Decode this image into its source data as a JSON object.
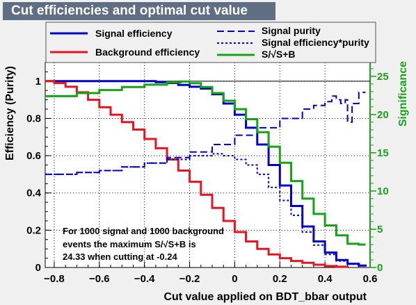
{
  "title": "Cut efficiencies and optimal cut value",
  "chart_data": {
    "type": "line",
    "xlabel": "Cut value applied on BDT_bbar output",
    "ylabel": "Efficiency (Purity)",
    "y2label": "Significance",
    "xlim": [
      -0.84,
      0.6
    ],
    "ylim": [
      0,
      1.1
    ],
    "y2lim": [
      0,
      26.8
    ],
    "xticks": [
      -0.8,
      -0.6,
      -0.4,
      -0.2,
      0,
      0.2,
      0.4,
      0.6
    ],
    "xtick_labels": [
      "−0.8",
      "−0.6",
      "−0.4",
      "−0.2",
      "0",
      "0.2",
      "0.4",
      "0.6"
    ],
    "yticks": [
      0,
      0.2,
      0.4,
      0.6,
      0.8,
      1
    ],
    "ytick_labels": [
      "0",
      "0.2",
      "0.4",
      "0.6",
      "0.8",
      "1"
    ],
    "y2ticks": [
      0,
      5,
      10,
      15,
      20,
      25
    ],
    "y2tick_labels": [
      "0",
      "5",
      "10",
      "15",
      "20",
      "25"
    ],
    "grid": true,
    "legend_placement": "top",
    "colors": {
      "signal": "#0000cc",
      "background": "#e8141e",
      "significance": "#16a316",
      "axis_right": "#16a316"
    },
    "series": [
      {
        "name": "Signal efficiency",
        "style": "solid",
        "color": "#0000cc",
        "axis": "left",
        "x": [
          -0.84,
          -0.6,
          -0.42,
          -0.35,
          -0.3,
          -0.25,
          -0.2,
          -0.15,
          -0.1,
          -0.05,
          0.0,
          0.05,
          0.1,
          0.15,
          0.2,
          0.25,
          0.3,
          0.35,
          0.4,
          0.45,
          0.5,
          0.55,
          0.58
        ],
        "values": [
          1.0,
          1.0,
          1.0,
          0.995,
          0.99,
          0.98,
          0.97,
          0.96,
          0.93,
          0.88,
          0.82,
          0.75,
          0.66,
          0.55,
          0.44,
          0.33,
          0.22,
          0.14,
          0.08,
          0.04,
          0.02,
          0.01,
          0.005
        ]
      },
      {
        "name": "Background efficiency",
        "style": "solid",
        "color": "#e8141e",
        "axis": "left",
        "x": [
          -0.84,
          -0.8,
          -0.75,
          -0.7,
          -0.65,
          -0.6,
          -0.55,
          -0.5,
          -0.45,
          -0.4,
          -0.35,
          -0.3,
          -0.25,
          -0.2,
          -0.15,
          -0.1,
          -0.05,
          0.0,
          0.05,
          0.1,
          0.15,
          0.2,
          0.25,
          0.3,
          0.35,
          0.4,
          0.45,
          0.5
        ],
        "values": [
          1.0,
          0.99,
          0.97,
          0.94,
          0.9,
          0.86,
          0.82,
          0.78,
          0.74,
          0.69,
          0.64,
          0.58,
          0.52,
          0.46,
          0.39,
          0.32,
          0.25,
          0.19,
          0.14,
          0.1,
          0.07,
          0.05,
          0.035,
          0.025,
          0.015,
          0.008,
          0.004,
          0.002
        ]
      },
      {
        "name": "Signal purity",
        "style": "longdash",
        "color": "#0000cc",
        "axis": "left",
        "x": [
          -0.84,
          -0.7,
          -0.6,
          -0.5,
          -0.4,
          -0.3,
          -0.2,
          -0.1,
          0.0,
          0.1,
          0.2,
          0.3,
          0.35,
          0.4,
          0.43,
          0.45,
          0.47,
          0.49,
          0.5,
          0.52,
          0.55,
          0.58
        ],
        "values": [
          0.5,
          0.51,
          0.52,
          0.54,
          0.56,
          0.59,
          0.62,
          0.66,
          0.71,
          0.75,
          0.8,
          0.85,
          0.87,
          0.89,
          0.92,
          0.9,
          0.88,
          0.9,
          0.78,
          0.88,
          0.94,
          0.94
        ]
      },
      {
        "name": "Signal efficiency*purity",
        "style": "dotted",
        "color": "#0000cc",
        "axis": "left",
        "x": [
          -0.84,
          -0.7,
          -0.6,
          -0.5,
          -0.4,
          -0.3,
          -0.2,
          -0.1,
          -0.05,
          0.0,
          0.05,
          0.1,
          0.15,
          0.2,
          0.25,
          0.3,
          0.35,
          0.4,
          0.45,
          0.5,
          0.55,
          0.58
        ],
        "values": [
          0.5,
          0.51,
          0.52,
          0.54,
          0.56,
          0.58,
          0.6,
          0.61,
          0.6,
          0.58,
          0.55,
          0.5,
          0.43,
          0.36,
          0.28,
          0.19,
          0.12,
          0.07,
          0.035,
          0.018,
          0.009,
          0.005
        ]
      },
      {
        "name": "S/√S+B",
        "style": "solid",
        "color": "#16a316",
        "axis": "right",
        "x": [
          -0.84,
          -0.7,
          -0.6,
          -0.5,
          -0.4,
          -0.3,
          -0.24,
          -0.2,
          -0.15,
          -0.1,
          -0.05,
          0.0,
          0.05,
          0.1,
          0.15,
          0.2,
          0.25,
          0.3,
          0.35,
          0.4,
          0.45,
          0.5,
          0.55,
          0.58
        ],
        "values": [
          22.4,
          22.8,
          23.2,
          23.6,
          23.9,
          24.2,
          24.33,
          24.1,
          23.6,
          22.8,
          21.8,
          20.7,
          19.4,
          17.7,
          15.8,
          13.7,
          11.3,
          9.0,
          7.0,
          5.5,
          4.2,
          3.1,
          3.0,
          3.0
        ]
      }
    ],
    "reference_line": {
      "y": 1
    },
    "annotation": {
      "line1": "For 1000 signal and 1000 background",
      "line2": "events the maximum S/√S+B is",
      "line3": "24.33 when cutting at -0.24"
    }
  }
}
